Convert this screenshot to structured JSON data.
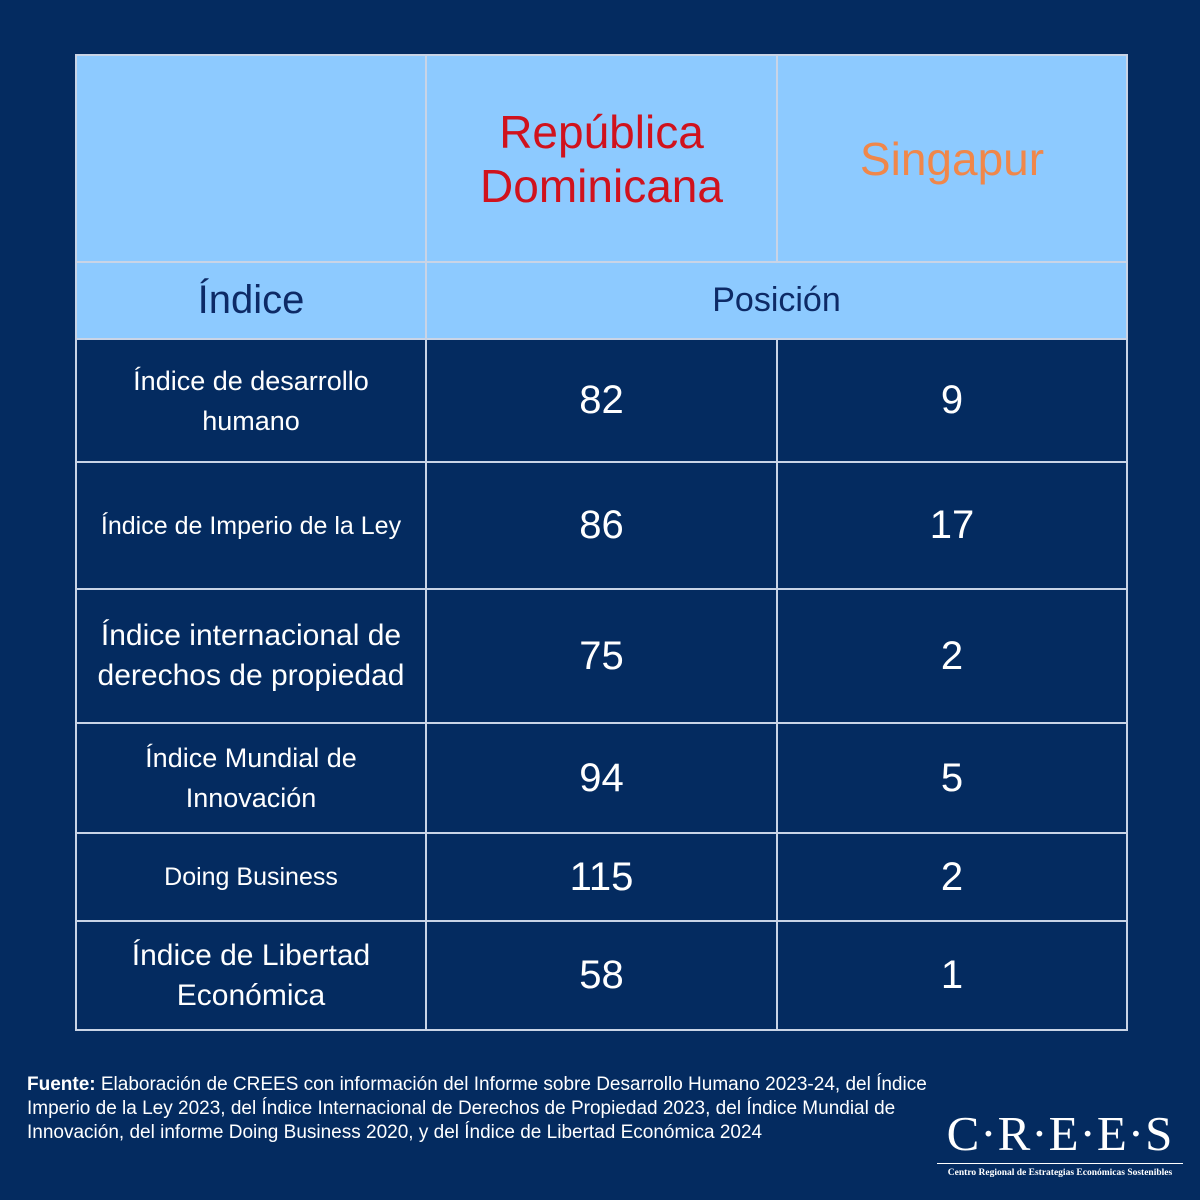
{
  "table": {
    "country_1": "República Dominicana",
    "country_2": "Singapur",
    "index_header": "Índice",
    "position_header": "Posición",
    "rows": [
      {
        "label": "Índice de desarrollo humano",
        "rd": "82",
        "sg": "9"
      },
      {
        "label": "Índice de Imperio de la Ley",
        "rd": "86",
        "sg": "17"
      },
      {
        "label": "Índice internacional de derechos de propiedad",
        "rd": "75",
        "sg": "2"
      },
      {
        "label": "Índice Mundial de Innovación",
        "rd": "94",
        "sg": "5"
      },
      {
        "label": "Doing Business",
        "rd": "115",
        "sg": "2"
      },
      {
        "label": "Índice de Libertad Económica",
        "rd": "58",
        "sg": "1"
      }
    ]
  },
  "footer": {
    "label": "Fuente:",
    "text": " Elaboración de CREES con información del Informe sobre Desarrollo Humano 2023-24, del Índice Imperio de la Ley 2023, del Índice Internacional de Derechos de Propiedad 2023, del Índice Mundial de Innovación,  del informe Doing Business 2020, y del Índice de Libertad Económica 2024"
  },
  "logo": {
    "name": "C·R·E·E·S",
    "subtitle": "Centro Regional de Estrategias Económicas Sostenibles"
  },
  "colors": {
    "background": "#042b60",
    "header_fill": "#8dcaff",
    "country_1": "#d0121d",
    "country_2": "#f0874a",
    "header_text": "#0d2a66"
  }
}
